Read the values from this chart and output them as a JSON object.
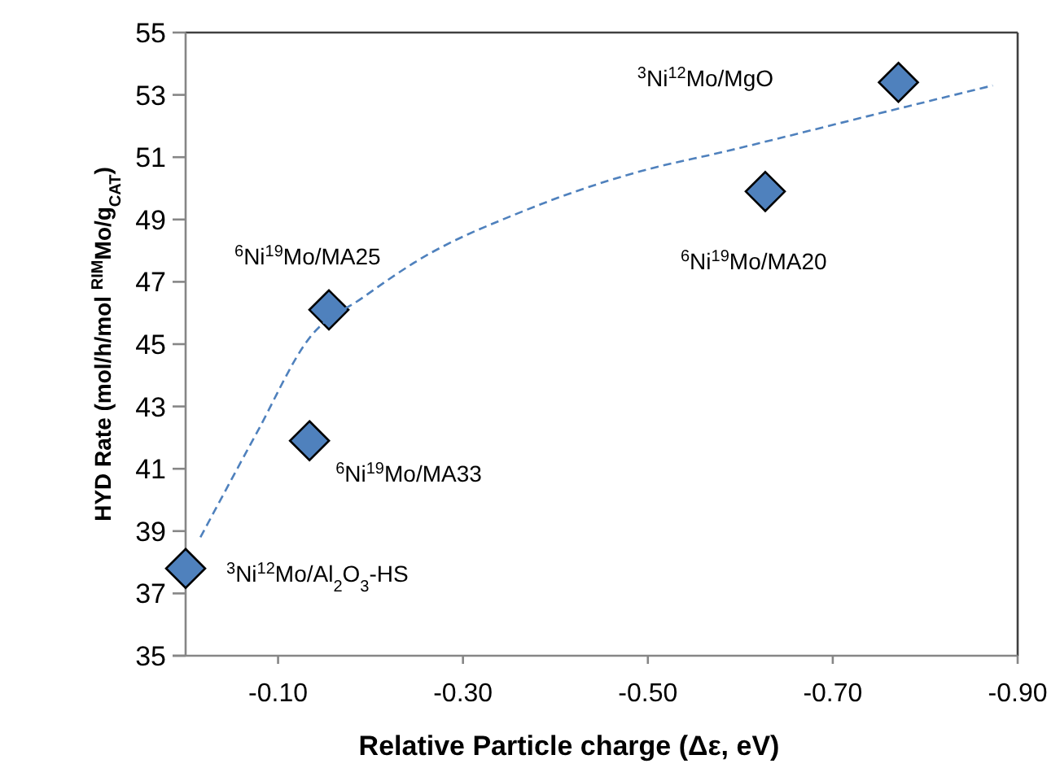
{
  "chart_data": {
    "type": "scatter",
    "xlabel": "Relative Particle charge  (Δε, eV)",
    "ylabel": "HYD Rate (mol/h/mol $^{RIM}$Mo/g$_{CAT}$)",
    "xlim": [
      0.0,
      -0.9
    ],
    "xticks": [
      {
        "value": -0.1,
        "label": "-0.10"
      },
      {
        "value": -0.3,
        "label": "-0.30"
      },
      {
        "value": -0.5,
        "label": "-0.50"
      },
      {
        "value": -0.7,
        "label": "-0.70"
      },
      {
        "value": -0.9,
        "label": "-0.90"
      }
    ],
    "ylim": [
      35,
      55
    ],
    "yticks": [
      35,
      37,
      39,
      41,
      43,
      45,
      47,
      49,
      51,
      53,
      55
    ],
    "grid": false,
    "series": [
      {
        "color": "#4f81bd",
        "marker": "diamond",
        "x": [
          0.0,
          -0.134,
          -0.155,
          -0.627,
          -0.771
        ],
        "values": [
          37.8,
          41.9,
          46.1,
          49.9,
          53.4
        ]
      },
      {
        "type": "line",
        "color": "#4f81bd",
        "line_style": "dashed",
        "marker": "none",
        "x": [
          -0.016,
          -0.076,
          -0.134,
          -0.192,
          -0.252,
          -0.368,
          -0.486,
          -0.586,
          -0.763,
          -0.873
        ],
        "values": [
          38.8,
          42.1,
          45.2,
          46.5,
          47.7,
          49.3,
          50.5,
          51.2,
          52.5,
          53.3
        ]
      }
    ],
    "annotations": [
      {
        "text": "$^{3}$Ni$^{12}$Mo/Al$_{2}$O$_{3}$-HS",
        "x": 0.0,
        "y": 37.8
      },
      {
        "text": "$^{6}$Ni$^{19}$Mo/MA33",
        "x": -0.134,
        "y": 41.9
      },
      {
        "text": "$^{6}$Ni$^{19}$Mo/MA25",
        "x": -0.155,
        "y": 46.1
      },
      {
        "text": "$^{6}$Ni$^{19}$Mo/MA20",
        "x": -0.627,
        "y": 49.9
      },
      "$^{3}$Ni$^{12}$Mo/MgO"
    ]
  }
}
